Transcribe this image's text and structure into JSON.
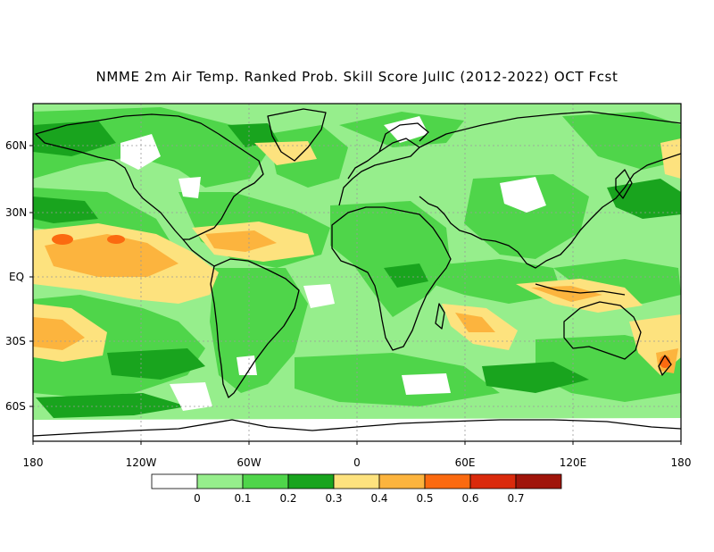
{
  "title": "NMME 2m Air Temp. Ranked Prob. Skill Score JulIC (2012-2022) OCT Fcst",
  "lat_labels": [
    "60N",
    "30N",
    "EQ",
    "30S",
    "60S"
  ],
  "lon_labels": [
    "180",
    "120W",
    "60W",
    "0",
    "60E",
    "120E",
    "180"
  ],
  "colorbar": {
    "labels": [
      "0",
      "0.1",
      "0.2",
      "0.3",
      "0.4",
      "0.5",
      "0.6",
      "0.7"
    ],
    "colors": [
      "#ffffff",
      "#96ee8c",
      "#4fd54a",
      "#19a41e",
      "#fde27e",
      "#fcb43e",
      "#fb6a10",
      "#da2a0c",
      "#a0150b"
    ]
  },
  "colors": {
    "coast": "#000000",
    "gridline": "#9a9a9a"
  }
}
